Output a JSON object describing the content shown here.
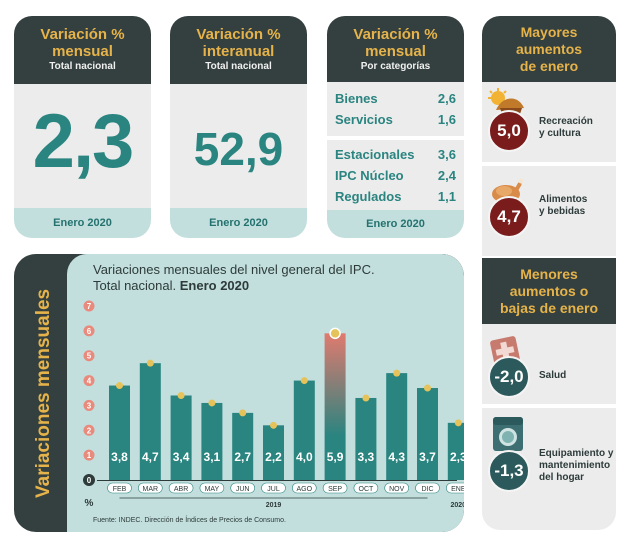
{
  "card_mensual": {
    "title": "Variación %\nmensual",
    "title_l1": "Variación %",
    "title_l2": "mensual",
    "sub": "Total nacional",
    "value": "2,3",
    "foot": "Enero 2020"
  },
  "card_interanual": {
    "title_l1": "Variación %",
    "title_l2": "interanual",
    "sub": "Total nacional",
    "value": "52,9",
    "foot": "Enero 2020"
  },
  "card_categorias": {
    "title_l1": "Variación %",
    "title_l2": "mensual",
    "sub": "Por categorías",
    "group1": [
      {
        "label": "Bienes",
        "value": "2,6"
      },
      {
        "label": "Servicios",
        "value": "1,6"
      }
    ],
    "group2": [
      {
        "label": "Estacionales",
        "value": "3,6"
      },
      {
        "label": "IPC Núcleo",
        "value": "2,4"
      },
      {
        "label": "Regulados",
        "value": "1,1"
      }
    ],
    "foot": "Enero 2020"
  },
  "mayores": {
    "title_l1": "Mayores",
    "title_l2": "aumentos",
    "title_l3": "de enero",
    "items": [
      {
        "value": "5,0",
        "label_l1": "Recreación",
        "label_l2": "y cultura",
        "icon": "party-icon"
      },
      {
        "value": "4,7",
        "label_l1": "Alimentos",
        "label_l2": "y bebidas",
        "icon": "roast-chicken-icon"
      }
    ]
  },
  "menores": {
    "title_l1": "Menores",
    "title_l2": "aumentos o",
    "title_l3": "bajas de enero",
    "items": [
      {
        "value": "-2,0",
        "label_l1": "Salud",
        "label_l2": "",
        "icon": "medical-cross-icon"
      },
      {
        "value": "-1,3",
        "label_l1": "Equipamiento y",
        "label_l2": "mantenimiento",
        "label_l3": "del hogar",
        "icon": "washing-machine-icon"
      }
    ]
  },
  "chart": {
    "vertical_label": "Variaciones mensuales",
    "title_l1": "Variaciones mensuales del nivel general del IPC.",
    "title_l2_plain": "Total nacional. ",
    "title_l2_bold": "Enero 2020",
    "unit": "%",
    "source": "Fuente: INDEC. Dirección de Índices de Precios de Consumo.",
    "year_2019": "2019",
    "year_2020": "2020",
    "colors": {
      "bar": "#2a8480",
      "highlight_top": "#e07a6e",
      "highlight_bottom": "#2a8480",
      "dot": "#e6c35a"
    }
  },
  "chart_data": {
    "type": "bar",
    "categories": [
      "FEB",
      "MAR",
      "ABR",
      "MAY",
      "JUN",
      "JUL",
      "AGO",
      "SEP",
      "OCT",
      "NOV",
      "DIC",
      "ENE"
    ],
    "values": [
      3.8,
      4.7,
      3.4,
      3.1,
      2.7,
      2.2,
      4.0,
      5.9,
      3.3,
      4.3,
      3.7,
      2.3
    ],
    "value_labels": [
      "3,8",
      "4,7",
      "3,4",
      "3,1",
      "2,7",
      "2,2",
      "4,0",
      "5,9",
      "3,3",
      "4,3",
      "3,7",
      "2,3"
    ],
    "y_ticks": [
      0,
      1,
      2,
      3,
      4,
      5,
      6,
      7
    ],
    "ylim": [
      0,
      7
    ],
    "highlight_index": 7,
    "grid": false
  }
}
